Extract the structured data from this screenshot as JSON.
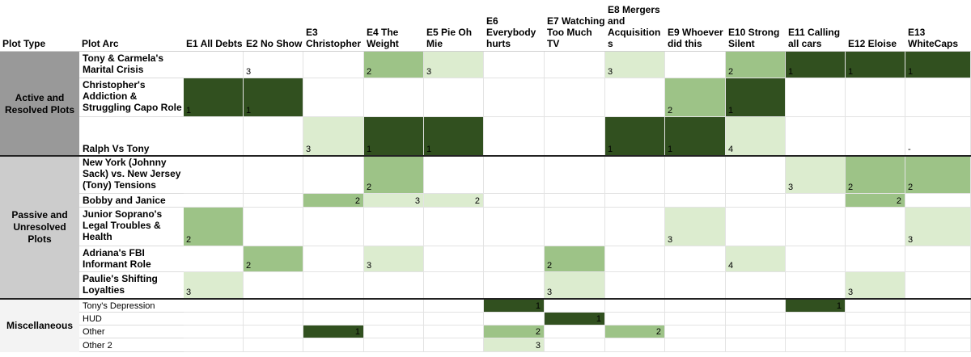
{
  "header": {
    "plot_type": "Plot Type",
    "plot_arc": "Plot Arc",
    "episodes": [
      "E1 All Debts",
      "E2 No Show",
      "E3 Christopher",
      "E4 The Weight",
      "E5 Pie Oh Mie",
      "E6 Everybody hurts",
      "E7 Watching Too Much TV",
      "E8 Mergers and Acquisition s",
      "E9 Whoever did this",
      "E10 Strong Silent",
      "E11 Calling all cars",
      "E12 Eloise",
      "E13 WhiteCaps"
    ]
  },
  "groups": [
    {
      "label": "Active and Resolved Plots"
    },
    {
      "label": "Passive and Unresolved Plots"
    },
    {
      "label": "Miscellaneous"
    }
  ],
  "colors": {
    "dark": "#31501f",
    "medium": "#9dc387",
    "light": "#dceccf",
    "group1": "#999999",
    "group2": "#cccccc",
    "group3": "#f3f3f3"
  },
  "rows": [
    {
      "arc": "Tony & Carmela's Marital Crisis",
      "cells": [
        "",
        "3",
        "",
        "2",
        "3",
        "",
        "",
        "3",
        "",
        "2",
        "1",
        "1",
        "1"
      ]
    },
    {
      "arc": "Christopher's Addiction & Struggling Capo Role",
      "cells": [
        "1",
        "1",
        "",
        "",
        "",
        "",
        "",
        "",
        "2",
        "1",
        "",
        "",
        ""
      ]
    },
    {
      "arc": "Ralph Vs Tony",
      "cells": [
        "",
        "",
        "3",
        "1",
        "1",
        "",
        "",
        "1",
        "1",
        "4",
        "",
        "",
        "-"
      ]
    },
    {
      "arc": "New York (Johnny Sack) vs. New Jersey (Tony) Tensions",
      "cells": [
        "",
        "",
        "",
        "2",
        "",
        "",
        "",
        "",
        "",
        "",
        "3",
        "2",
        "2"
      ]
    },
    {
      "arc": "Bobby and Janice",
      "cells": [
        "",
        "",
        "2",
        "3",
        "2",
        "",
        "",
        "",
        "",
        "",
        "",
        "2",
        ""
      ]
    },
    {
      "arc": "Junior Soprano's Legal Troubles & Health",
      "cells": [
        "2",
        "",
        "",
        "",
        "",
        "",
        "",
        "",
        "3",
        "",
        "",
        "",
        "3"
      ]
    },
    {
      "arc": "Adriana's FBI Informant Role",
      "cells": [
        "",
        "2",
        "",
        "3",
        "",
        "",
        "2",
        "",
        "",
        "4",
        "",
        "",
        ""
      ]
    },
    {
      "arc": "Paulie's Shifting Loyalties",
      "cells": [
        "3",
        "",
        "",
        "",
        "",
        "",
        "3",
        "",
        "",
        "",
        "",
        "3",
        ""
      ]
    },
    {
      "arc": "Tony's Depression",
      "cells": [
        "",
        "",
        "",
        "",
        "",
        "1",
        "",
        "",
        "",
        "",
        "1",
        "",
        ""
      ]
    },
    {
      "arc": "HUD",
      "cells": [
        "",
        "",
        "",
        "",
        "",
        "",
        "1",
        "",
        "",
        "",
        "",
        "",
        ""
      ]
    },
    {
      "arc": "Other",
      "cells": [
        "",
        "",
        "1",
        "",
        "",
        "2",
        "",
        "2",
        "",
        "",
        "",
        "",
        ""
      ]
    },
    {
      "arc": "Other 2",
      "cells": [
        "",
        "",
        "",
        "",
        "",
        "3",
        "",
        "",
        "",
        "",
        "",
        "",
        ""
      ]
    }
  ]
}
